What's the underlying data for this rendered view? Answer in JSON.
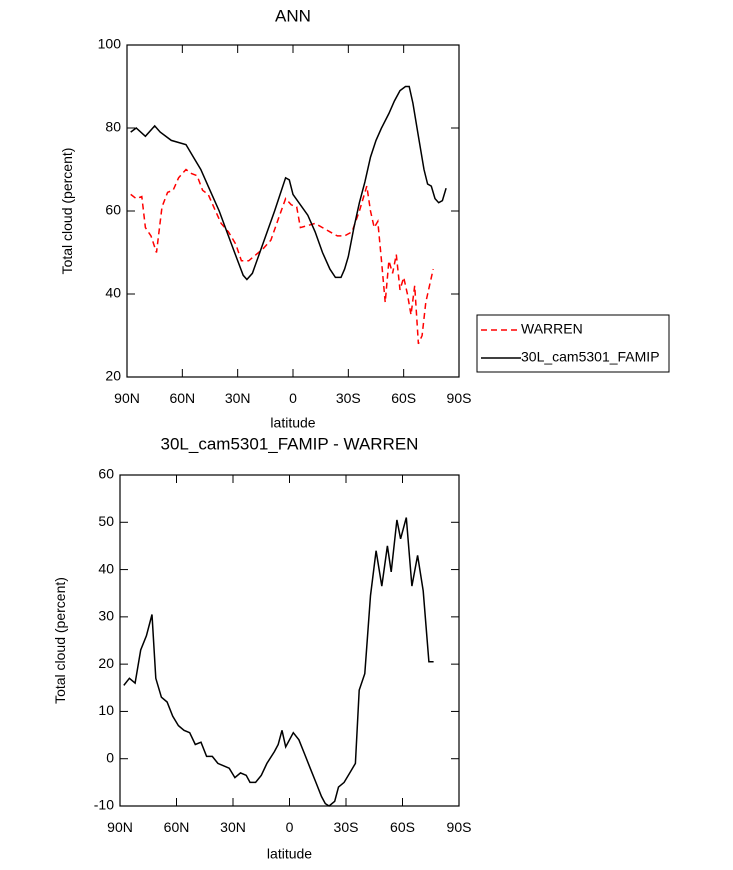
{
  "chart_data": [
    {
      "type": "line",
      "title": "ANN",
      "xlabel": "latitude",
      "ylabel": "Total cloud (percent)",
      "xlim": [
        90,
        -90
      ],
      "xticks": [
        {
          "value": 90,
          "label": "90N"
        },
        {
          "value": 60,
          "label": "60N"
        },
        {
          "value": 30,
          "label": "30N"
        },
        0,
        {
          "value": -30,
          "label": "30S"
        },
        {
          "value": -60,
          "label": "60S"
        },
        {
          "value": -90,
          "label": "90S"
        }
      ],
      "ylim": [
        20,
        100
      ],
      "yticks": [
        20,
        40,
        60,
        80,
        100
      ],
      "legend": "outside-right",
      "series": [
        {
          "name": "WARREN",
          "color": "#ff0000",
          "style": "dashed",
          "x": [
            88,
            85,
            82,
            80,
            77,
            74,
            71,
            68,
            65,
            62,
            58,
            55,
            52,
            49,
            46,
            42,
            39,
            35,
            31,
            28,
            24,
            20,
            16,
            12,
            8,
            4,
            1,
            -2,
            -4,
            -8,
            -12,
            -16,
            -20,
            -24,
            -28,
            -32,
            -36,
            -40,
            -42,
            -44,
            -46,
            -48,
            -50,
            -52,
            -54,
            -56,
            -58,
            -60,
            -62,
            -64,
            -66,
            -68,
            -70,
            -72,
            -76
          ],
          "values": [
            64,
            63,
            63.5,
            56,
            54,
            50,
            61,
            64.5,
            65,
            68,
            70,
            69,
            68.5,
            65,
            64,
            60,
            57,
            55,
            52,
            48,
            48,
            49.5,
            51,
            53,
            58,
            63,
            61.5,
            61,
            56,
            56.5,
            57,
            56,
            55,
            54,
            54,
            55,
            60,
            66,
            60,
            56,
            57.5,
            48,
            38,
            48,
            45,
            49.5,
            41,
            44,
            40,
            35,
            42,
            28,
            30,
            38,
            46
          ]
        },
        {
          "name": "30L_cam5301_FAMIP",
          "color": "#000000",
          "style": "solid",
          "x": [
            88,
            85,
            80,
            75,
            72,
            66,
            62,
            58,
            54,
            50,
            45,
            40,
            35,
            30,
            27,
            25,
            22,
            18,
            14,
            10,
            7,
            4,
            2,
            0,
            -4,
            -8,
            -12,
            -16,
            -20,
            -23,
            -26,
            -28,
            -30,
            -33,
            -36,
            -39,
            -42,
            -45,
            -48,
            -52,
            -55,
            -58,
            -61,
            -63,
            -65,
            -68,
            -71,
            -73,
            -75,
            -77,
            -79,
            -81,
            -83
          ],
          "values": [
            79,
            80,
            78,
            80.5,
            79,
            77,
            76.5,
            76,
            73,
            70,
            65,
            60,
            54,
            48,
            44.5,
            43.5,
            45,
            50,
            55,
            60,
            64,
            68,
            67.5,
            64,
            61.5,
            59,
            55,
            50,
            46,
            44,
            44,
            46,
            49,
            56,
            62,
            67,
            73,
            77,
            80,
            83.5,
            86.5,
            89,
            90,
            90,
            86,
            78,
            70,
            66.5,
            66,
            63,
            62,
            62.5,
            65.5
          ]
        }
      ]
    },
    {
      "type": "line",
      "title": "30L_cam5301_FAMIP - WARREN",
      "xlabel": "latitude",
      "ylabel": "Total cloud (percent)",
      "xlim": [
        90,
        -90
      ],
      "xticks": [
        {
          "value": 90,
          "label": "90N"
        },
        {
          "value": 60,
          "label": "60N"
        },
        {
          "value": 30,
          "label": "30N"
        },
        0,
        {
          "value": -30,
          "label": "30S"
        },
        {
          "value": -60,
          "label": "60S"
        },
        {
          "value": -90,
          "label": "90S"
        }
      ],
      "ylim": [
        -10,
        60
      ],
      "yticks": [
        -10,
        0,
        10,
        20,
        30,
        40,
        50,
        60
      ],
      "series": [
        {
          "color": "#000000",
          "style": "solid",
          "x": [
            88,
            85,
            82,
            79,
            76,
            73,
            71,
            68,
            65,
            62,
            59,
            56,
            53,
            50,
            47,
            44,
            41,
            38,
            35,
            32,
            29,
            26,
            23,
            21,
            18,
            15,
            12,
            8,
            6,
            4,
            2,
            -2,
            -5,
            -8,
            -11,
            -14,
            -17,
            -19,
            -21,
            -24,
            -26,
            -29,
            -32,
            -35,
            -37,
            -40,
            -43,
            -46,
            -49,
            -52,
            -54,
            -57,
            -59,
            -62,
            -65,
            -68,
            -71,
            -74,
            -76.5
          ],
          "values": [
            15.5,
            17,
            16,
            23,
            26,
            30.5,
            17,
            13,
            12,
            9,
            7,
            6,
            5.5,
            3,
            3.5,
            0.5,
            0.5,
            -1,
            -1.5,
            -2,
            -4,
            -3,
            -3.5,
            -5,
            -5,
            -3.5,
            -1,
            1.5,
            3,
            6,
            2.5,
            5.5,
            4,
            1,
            -2,
            -5,
            -8,
            -9.5,
            -10,
            -9,
            -6,
            -5,
            -3,
            -1,
            14.5,
            18,
            34.5,
            44,
            36.5,
            45,
            39.5,
            50.5,
            46.5,
            51,
            36.5,
            43,
            35.5,
            20.5,
            20.5
          ]
        }
      ]
    }
  ]
}
